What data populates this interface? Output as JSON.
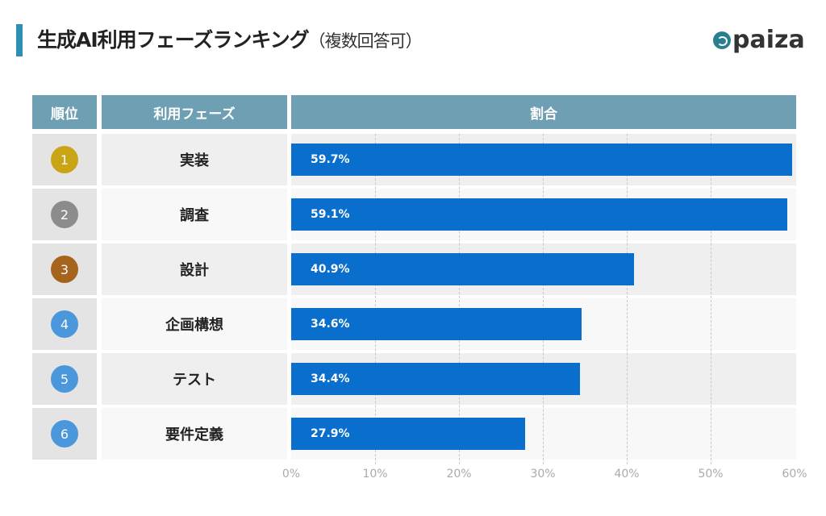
{
  "title": {
    "main": "生成AI利用フェーズランキング",
    "sub": "（複数回答可）"
  },
  "logo": "paiza",
  "colors": {
    "header": "#6e9fb2",
    "bar": "#0a6fcc",
    "gold": "#c9a516",
    "silver": "#8c8c8c",
    "bronze": "#a6631c",
    "other": "#4a97db"
  },
  "chart_data": {
    "type": "bar",
    "orientation": "horizontal",
    "columns": [
      "順位",
      "利用フェーズ",
      "割合"
    ],
    "ranks": [
      "1",
      "2",
      "3",
      "4",
      "5",
      "6"
    ],
    "categories": [
      "実装",
      "調査",
      "設計",
      "企画構想",
      "テスト",
      "要件定義"
    ],
    "values": [
      59.7,
      59.1,
      40.9,
      34.6,
      34.4,
      27.9
    ],
    "value_labels": [
      "59.7%",
      "59.1%",
      "40.9%",
      "34.6%",
      "34.4%",
      "27.9%"
    ],
    "xlim": [
      0,
      60
    ],
    "ticks": [
      "0%",
      "10%",
      "20%",
      "30%",
      "40%",
      "50%",
      "60%"
    ],
    "grid": true
  }
}
